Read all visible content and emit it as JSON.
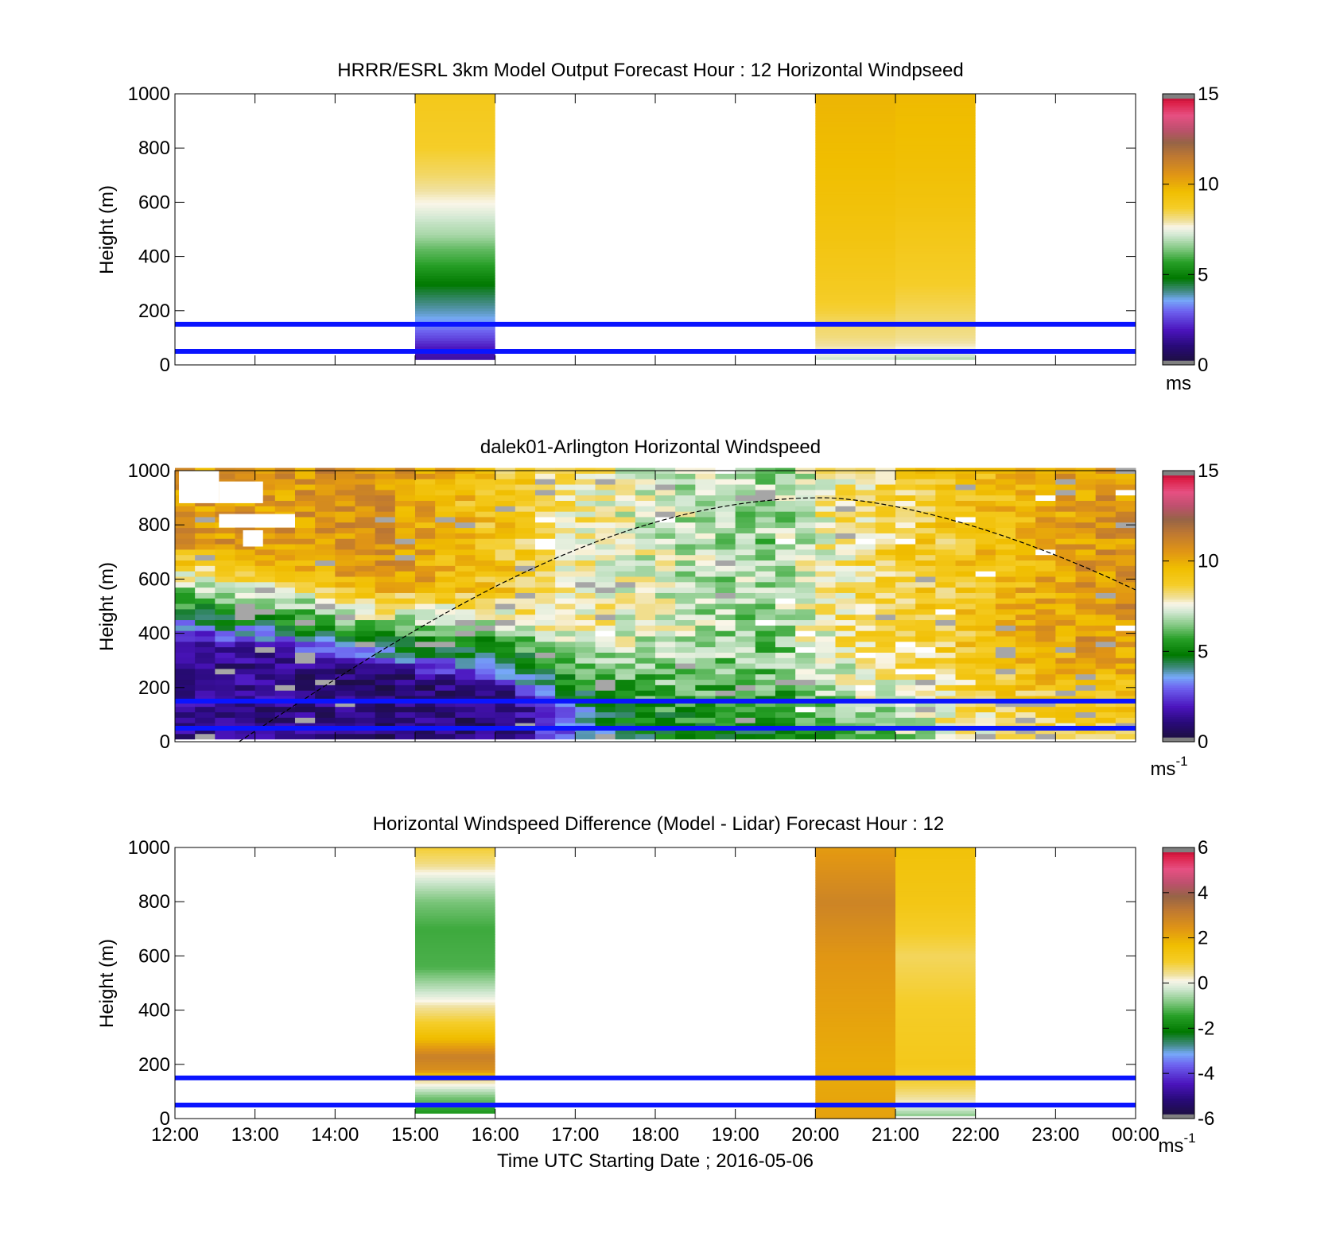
{
  "x_axis": {
    "ticks": [
      "12:00",
      "13:00",
      "14:00",
      "15:00",
      "16:00",
      "17:00",
      "18:00",
      "19:00",
      "20:00",
      "21:00",
      "22:00",
      "23:00",
      "00:00"
    ],
    "label": "Time UTC  Starting Date ; 2016-05-06"
  },
  "chart_data": [
    {
      "type": "heatmap",
      "title": "HRRR/ESRL 3km Model Output   Forecast Hour : 12 Horizontal Windpseed",
      "ylabel": "Height (m)",
      "ylim": [
        0,
        1000
      ],
      "yticks": [
        "0",
        "200",
        "400",
        "600",
        "800",
        "1000"
      ],
      "xlim_hours": [
        12,
        24
      ],
      "colorbar": {
        "min": 0,
        "max": 15,
        "ticks": [
          "0",
          "5",
          "10",
          "15"
        ],
        "unit": "ms"
      },
      "reference_lines_m": [
        50,
        150
      ],
      "columns": [
        {
          "t0": 15,
          "t1": 16,
          "z0": 20,
          "levels": [
            {
              "z": 20,
              "v": 1.6
            },
            {
              "z": 60,
              "v": 1.9
            },
            {
              "z": 100,
              "v": 2.6
            },
            {
              "z": 140,
              "v": 3.2
            },
            {
              "z": 180,
              "v": 3.7
            },
            {
              "z": 230,
              "v": 4.1
            },
            {
              "z": 280,
              "v": 4.6
            },
            {
              "z": 330,
              "v": 5.2
            },
            {
              "z": 380,
              "v": 5.8
            },
            {
              "z": 430,
              "v": 6.2
            },
            {
              "z": 480,
              "v": 6.8
            },
            {
              "z": 530,
              "v": 7.1
            },
            {
              "z": 590,
              "v": 7.6
            },
            {
              "z": 700,
              "v": 8.3
            },
            {
              "z": 800,
              "v": 8.7
            },
            {
              "z": 1000,
              "v": 9.0
            }
          ]
        },
        {
          "t0": 20,
          "t1": 21,
          "z0": 20,
          "levels": [
            {
              "z": 20,
              "v": 7.1
            },
            {
              "z": 50,
              "v": 7.7
            },
            {
              "z": 80,
              "v": 8.0
            },
            {
              "z": 110,
              "v": 8.2
            },
            {
              "z": 150,
              "v": 8.3
            },
            {
              "z": 200,
              "v": 8.6
            },
            {
              "z": 300,
              "v": 8.9
            },
            {
              "z": 450,
              "v": 9.2
            },
            {
              "z": 600,
              "v": 9.4
            },
            {
              "z": 750,
              "v": 9.6
            },
            {
              "z": 1000,
              "v": 9.8
            }
          ]
        },
        {
          "t0": 21,
          "t1": 22,
          "z0": 20,
          "levels": [
            {
              "z": 20,
              "v": 6.8
            },
            {
              "z": 50,
              "v": 7.5
            },
            {
              "z": 80,
              "v": 7.9
            },
            {
              "z": 110,
              "v": 8.1
            },
            {
              "z": 150,
              "v": 8.2
            },
            {
              "z": 200,
              "v": 8.4
            },
            {
              "z": 300,
              "v": 8.7
            },
            {
              "z": 450,
              "v": 9.0
            },
            {
              "z": 600,
              "v": 9.3
            },
            {
              "z": 750,
              "v": 9.5
            },
            {
              "z": 1000,
              "v": 9.7
            }
          ]
        }
      ]
    },
    {
      "type": "heatmap",
      "title": "dalek01-Arlington  Horizontal Windspeed",
      "ylabel": "Height (m)",
      "ylim": [
        0,
        1000
      ],
      "yticks": [
        "0",
        "200",
        "400",
        "600",
        "800",
        "1000"
      ],
      "xlim_hours": [
        12,
        24
      ],
      "colorbar": {
        "min": 0,
        "max": 15,
        "ticks": [
          "0",
          "5",
          "10",
          "15"
        ],
        "unit": "ms",
        "unit_exp": "-1"
      },
      "reference_lines_m": [
        50,
        150
      ],
      "time_bins_hours": 0.25,
      "vertical_bins_m": 20,
      "data_bottom_m": 10,
      "profile_hours": [
        12.0,
        13.5,
        14.5,
        15.5,
        16.25,
        16.75,
        17.5,
        18.5,
        19.5,
        20.25,
        21.0,
        21.75,
        22.5,
        23.25,
        24.0
      ],
      "profile_jet_height_m": [
        380,
        320,
        260,
        220,
        180,
        110,
        70,
        40,
        30,
        30,
        30,
        20,
        20,
        20,
        20
      ],
      "profile_low_speed": [
        1.5,
        1.2,
        1.0,
        1.0,
        1.2,
        2.5,
        4.5,
        5.0,
        5.0,
        5.5,
        6.5,
        7.5,
        8.0,
        8.0,
        8.0
      ],
      "profile_upper_speed": [
        10.5,
        10.5,
        10.8,
        9.6,
        9.0,
        8.2,
        7.6,
        7.0,
        6.6,
        8.0,
        8.6,
        9.0,
        9.6,
        10.4,
        10.6
      ],
      "boundary_layer_curve": {
        "t_start": 12.8,
        "t_peak": 20.1,
        "peak_m": 900,
        "t_end": 24.0,
        "end_m": 560
      }
    },
    {
      "type": "heatmap",
      "title": "Horizontal Windspeed Difference (Model - Lidar) Forecast Hour : 12",
      "ylabel": "Height (m)",
      "ylim": [
        0,
        1000
      ],
      "yticks": [
        "0",
        "200",
        "400",
        "600",
        "800",
        "1000"
      ],
      "xlim_hours": [
        12,
        24
      ],
      "colorbar": {
        "min": -6,
        "max": 6,
        "ticks": [
          "-6",
          "-4",
          "-2",
          "0",
          "2",
          "4",
          "6"
        ],
        "unit": "ms",
        "unit_exp": "-1"
      },
      "reference_lines_m": [
        50,
        150
      ],
      "columns": [
        {
          "t0": 15,
          "t1": 16,
          "z0": 20,
          "levels": [
            {
              "z": 20,
              "v": -1.6
            },
            {
              "z": 80,
              "v": -0.9
            },
            {
              "z": 140,
              "v": 0.4
            },
            {
              "z": 180,
              "v": 2.6
            },
            {
              "z": 230,
              "v": 3.0
            },
            {
              "z": 290,
              "v": 1.8
            },
            {
              "z": 350,
              "v": 1.0
            },
            {
              "z": 420,
              "v": 0.3
            },
            {
              "z": 470,
              "v": -0.3
            },
            {
              "z": 560,
              "v": -1.2
            },
            {
              "z": 700,
              "v": -1.3
            },
            {
              "z": 800,
              "v": -0.9
            },
            {
              "z": 880,
              "v": -0.2
            },
            {
              "z": 940,
              "v": 0.5
            },
            {
              "z": 1000,
              "v": 0.9
            }
          ]
        },
        {
          "t0": 20,
          "t1": 21,
          "z0": 0,
          "levels": [
            {
              "z": 0,
              "v": 2.2
            },
            {
              "z": 200,
              "v": 2.0
            },
            {
              "z": 400,
              "v": 2.2
            },
            {
              "z": 600,
              "v": 2.4
            },
            {
              "z": 800,
              "v": 2.9
            },
            {
              "z": 900,
              "v": 2.6
            },
            {
              "z": 1000,
              "v": 2.3
            }
          ]
        },
        {
          "t0": 21,
          "t1": 22,
          "z0": 10,
          "levels": [
            {
              "z": 10,
              "v": -0.8
            },
            {
              "z": 60,
              "v": 0.2
            },
            {
              "z": 120,
              "v": 0.8
            },
            {
              "z": 200,
              "v": 1.2
            },
            {
              "z": 400,
              "v": 1.0
            },
            {
              "z": 600,
              "v": 0.7
            },
            {
              "z": 800,
              "v": 1.3
            },
            {
              "z": 1000,
              "v": 1.5
            }
          ]
        }
      ]
    }
  ]
}
